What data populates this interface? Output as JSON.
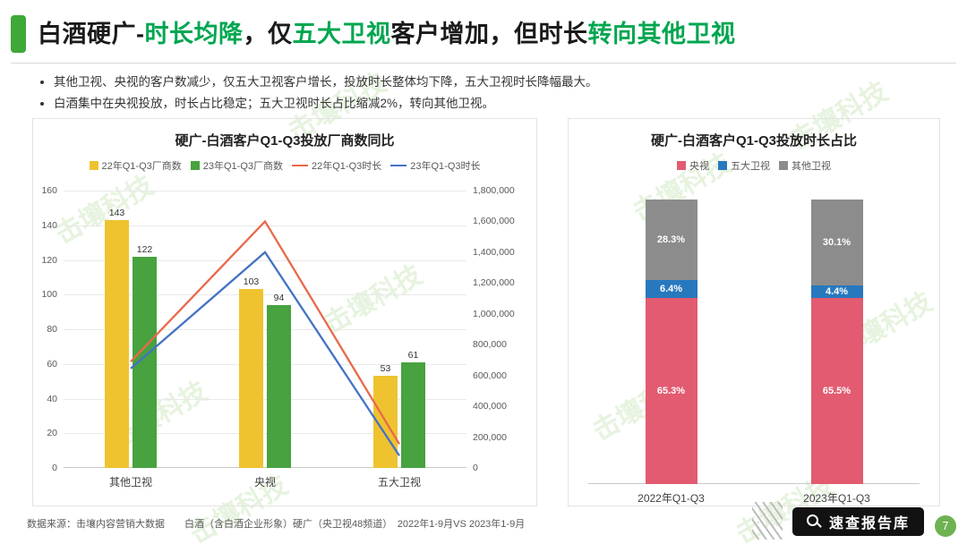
{
  "page": {
    "title_segments": [
      {
        "text": "白酒硬广-",
        "color": "#1a1a1a"
      },
      {
        "text": "时长均降",
        "color": "#00A650"
      },
      {
        "text": "，仅",
        "color": "#1a1a1a"
      },
      {
        "text": "五大卫视",
        "color": "#00A650"
      },
      {
        "text": "客户增加，但时长",
        "color": "#1a1a1a"
      },
      {
        "text": "转向其他卫视",
        "color": "#00A650"
      }
    ],
    "bullets": [
      "其他卫视、央视的客户数减少，仅五大卫视客户增长，投放时长整体均下降，五大卫视时长降幅最大。",
      "白酒集中在央视投放，时长占比稳定；五大卫视时长占比缩减2%，转向其他卫视。"
    ],
    "footer_source": "数据来源：击壤内容营销大数据　　白酒（含白酒企业形象）硬广（央卫视48频道）　2022年1-9月VS 2023年1-9月",
    "watermark_text": "击壤科技",
    "badge_text": "速查报告库",
    "page_number": "7"
  },
  "chart_data": [
    {
      "type": "bar",
      "subtype": "combo_bar_line",
      "title": "硬广-白酒客户Q1-Q3投放厂商数同比",
      "categories": [
        "其他卫视",
        "央视",
        "五大卫视"
      ],
      "bar_series": [
        {
          "name": "22年Q1-Q3厂商数",
          "color": "#EFC32F",
          "values": [
            143,
            103,
            53
          ]
        },
        {
          "name": "23年Q1-Q3厂商数",
          "color": "#47A23F",
          "values": [
            122,
            94,
            61
          ]
        }
      ],
      "line_series": [
        {
          "name": "22年Q1-Q3时长",
          "color": "#E8694A",
          "values": [
            690000,
            1600000,
            155000
          ]
        },
        {
          "name": "23年Q1-Q3时长",
          "color": "#4472C4",
          "values": [
            645000,
            1400000,
            80000
          ]
        }
      ],
      "left_axis": {
        "min": 0,
        "max": 160,
        "step": 20
      },
      "right_axis": {
        "min": 0,
        "max": 1800000,
        "step": 200000
      },
      "legend_position": "top",
      "grid": true
    },
    {
      "type": "bar",
      "subtype": "stacked_bar_100",
      "title": "硬广-白酒客户Q1-Q3投放时长占比",
      "categories": [
        "2022年Q1-Q3",
        "2023年Q1-Q3"
      ],
      "series": [
        {
          "name": "央视",
          "color": "#E25B70",
          "values": [
            65.3,
            65.5
          ]
        },
        {
          "name": "五大卫视",
          "color": "#2878BE",
          "values": [
            6.4,
            4.4
          ]
        },
        {
          "name": "其他卫视",
          "color": "#8C8C8C",
          "values": [
            28.3,
            30.1
          ]
        }
      ],
      "label_format": "percent",
      "legend_position": "top",
      "grid": false
    }
  ]
}
